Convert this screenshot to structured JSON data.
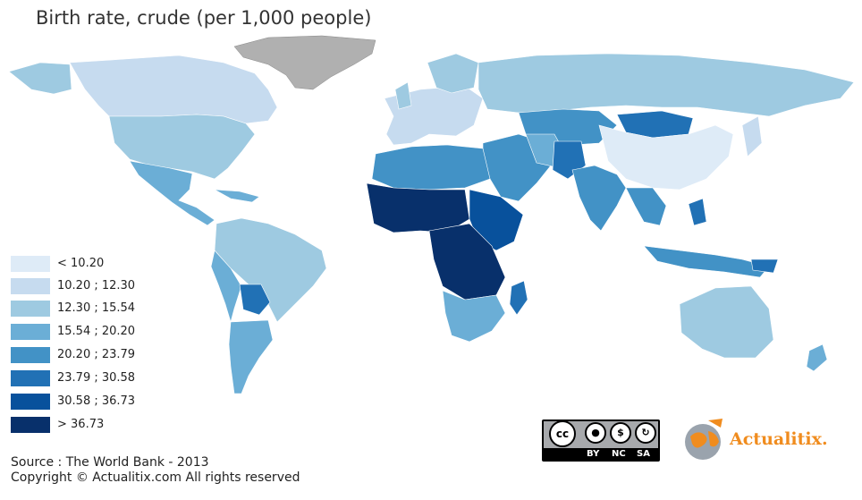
{
  "title": "Birth rate, crude (per 1,000 people)",
  "legend": [
    {
      "label": "< 10.20",
      "color": "#deebf7"
    },
    {
      "label": "10.20 ; 12.30",
      "color": "#c6dbef"
    },
    {
      "label": "12.30 ; 15.54",
      "color": "#9ecae1"
    },
    {
      "label": "15.54 ; 20.20",
      "color": "#6baed6"
    },
    {
      "label": "20.20 ; 23.79",
      "color": "#4292c6"
    },
    {
      "label": "23.79 ; 30.58",
      "color": "#2171b5"
    },
    {
      "label": "30.58 ; 36.73",
      "color": "#08519c"
    },
    {
      "label": "> 36.73",
      "color": "#08306b"
    }
  ],
  "no_data_color": "#b0b0b0",
  "source": "Source : The World Bank - 2013",
  "copyright": "Copyright © Actualitix.com All rights reserved",
  "license": {
    "labels": [
      "BY",
      "NC",
      "SA"
    ]
  },
  "brand": {
    "name": "Actualitix",
    "dot": ".",
    "accent": "#f08c1e"
  }
}
